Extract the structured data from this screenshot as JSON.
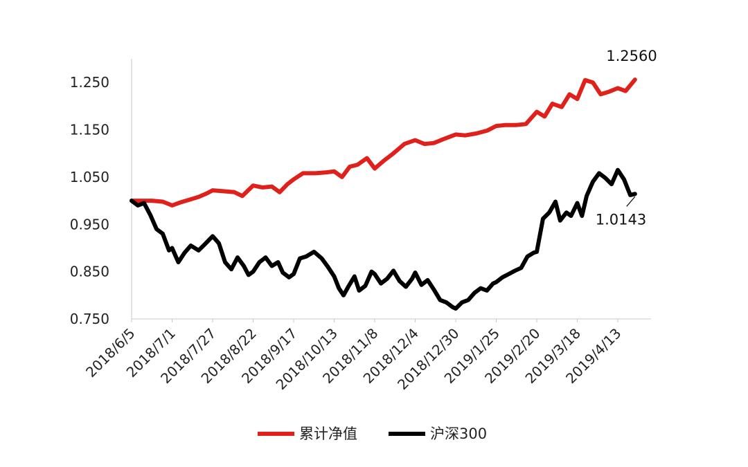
{
  "chart_data": {
    "type": "line",
    "title": "",
    "xlabel": "",
    "ylabel": "",
    "ylim": [
      0.75,
      1.3
    ],
    "yticks": [
      "1.250",
      "1.150",
      "1.050",
      "0.950",
      "0.850",
      "0.750"
    ],
    "ytick_values": [
      1.25,
      1.15,
      1.05,
      0.95,
      0.85,
      0.75
    ],
    "xtick_labels": [
      "2018/6/5",
      "2018/7/1",
      "2018/7/27",
      "2018/8/22",
      "2018/9/17",
      "2018/10/13",
      "2018/11/8",
      "2018/12/4",
      "2018/12/30",
      "2019/1/25",
      "2019/2/20",
      "2019/3/18",
      "2019/4/13"
    ],
    "grid": false,
    "legend_position": "bottom",
    "annotations": [
      {
        "text": "1.2560",
        "series": "累计净值"
      },
      {
        "text": "1.0143",
        "series": "沪深300"
      }
    ],
    "series": [
      {
        "name": "累计净值",
        "color": "#e0201b",
        "points": [
          [
            "2018/6/5",
            1.0
          ],
          [
            "2018/6/10",
            1.0
          ],
          [
            "2018/6/18",
            1.0
          ],
          [
            "2018/6/25",
            0.998
          ],
          [
            "2018/7/1",
            0.99
          ],
          [
            "2018/7/6",
            0.996
          ],
          [
            "2018/7/12",
            1.002
          ],
          [
            "2018/7/18",
            1.008
          ],
          [
            "2018/7/23",
            1.015
          ],
          [
            "2018/7/27",
            1.022
          ],
          [
            "2018/8/3",
            1.02
          ],
          [
            "2018/8/10",
            1.018
          ],
          [
            "2018/8/15",
            1.01
          ],
          [
            "2018/8/22",
            1.032
          ],
          [
            "2018/8/28",
            1.028
          ],
          [
            "2018/9/3",
            1.03
          ],
          [
            "2018/9/8",
            1.018
          ],
          [
            "2018/9/13",
            1.035
          ],
          [
            "2018/9/17",
            1.045
          ],
          [
            "2018/9/23",
            1.058
          ],
          [
            "2018/10/1",
            1.058
          ],
          [
            "2018/10/8",
            1.06
          ],
          [
            "2018/10/13",
            1.062
          ],
          [
            "2018/10/18",
            1.05
          ],
          [
            "2018/10/23",
            1.072
          ],
          [
            "2018/10/28",
            1.076
          ],
          [
            "2018/11/3",
            1.09
          ],
          [
            "2018/11/8",
            1.068
          ],
          [
            "2018/11/14",
            1.085
          ],
          [
            "2018/11/20",
            1.1
          ],
          [
            "2018/11/27",
            1.12
          ],
          [
            "2018/12/4",
            1.128
          ],
          [
            "2018/12/10",
            1.12
          ],
          [
            "2018/12/16",
            1.122
          ],
          [
            "2018/12/22",
            1.13
          ],
          [
            "2018/12/30",
            1.14
          ],
          [
            "2019/1/5",
            1.138
          ],
          [
            "2019/1/12",
            1.142
          ],
          [
            "2019/1/19",
            1.148
          ],
          [
            "2019/1/25",
            1.158
          ],
          [
            "2019/1/31",
            1.16
          ],
          [
            "2019/2/7",
            1.16
          ],
          [
            "2019/2/13",
            1.162
          ],
          [
            "2019/2/20",
            1.188
          ],
          [
            "2019/2/25",
            1.178
          ],
          [
            "2019/3/2",
            1.205
          ],
          [
            "2019/3/8",
            1.198
          ],
          [
            "2019/3/13",
            1.225
          ],
          [
            "2019/3/18",
            1.215
          ],
          [
            "2019/3/23",
            1.255
          ],
          [
            "2019/3/28",
            1.25
          ],
          [
            "2019/4/2",
            1.225
          ],
          [
            "2019/4/7",
            1.23
          ],
          [
            "2019/4/13",
            1.238
          ],
          [
            "2019/4/18",
            1.232
          ],
          [
            "2019/4/24",
            1.256
          ]
        ]
      },
      {
        "name": "沪深300",
        "color": "#000000",
        "points": [
          [
            "2018/6/5",
            1.0
          ],
          [
            "2018/6/9",
            0.99
          ],
          [
            "2018/6/13",
            0.995
          ],
          [
            "2018/6/17",
            0.97
          ],
          [
            "2018/6/21",
            0.94
          ],
          [
            "2018/6/25",
            0.93
          ],
          [
            "2018/6/29",
            0.895
          ],
          [
            "2018/7/1",
            0.9
          ],
          [
            "2018/7/5",
            0.87
          ],
          [
            "2018/7/9",
            0.89
          ],
          [
            "2018/7/13",
            0.905
          ],
          [
            "2018/7/18",
            0.895
          ],
          [
            "2018/7/22",
            0.908
          ],
          [
            "2018/7/27",
            0.925
          ],
          [
            "2018/7/31",
            0.91
          ],
          [
            "2018/8/4",
            0.87
          ],
          [
            "2018/8/8",
            0.855
          ],
          [
            "2018/8/12",
            0.88
          ],
          [
            "2018/8/16",
            0.862
          ],
          [
            "2018/8/19",
            0.843
          ],
          [
            "2018/8/22",
            0.85
          ],
          [
            "2018/8/26",
            0.87
          ],
          [
            "2018/8/30",
            0.88
          ],
          [
            "2018/9/3",
            0.862
          ],
          [
            "2018/9/7",
            0.87
          ],
          [
            "2018/9/10",
            0.848
          ],
          [
            "2018/9/14",
            0.838
          ],
          [
            "2018/9/17",
            0.845
          ],
          [
            "2018/9/21",
            0.878
          ],
          [
            "2018/9/25",
            0.882
          ],
          [
            "2018/9/30",
            0.892
          ],
          [
            "2018/10/5",
            0.878
          ],
          [
            "2018/10/9",
            0.86
          ],
          [
            "2018/10/13",
            0.84
          ],
          [
            "2018/10/16",
            0.815
          ],
          [
            "2018/10/19",
            0.8
          ],
          [
            "2018/10/22",
            0.818
          ],
          [
            "2018/10/26",
            0.84
          ],
          [
            "2018/10/29",
            0.81
          ],
          [
            "2018/11/2",
            0.82
          ],
          [
            "2018/11/6",
            0.85
          ],
          [
            "2018/11/8",
            0.845
          ],
          [
            "2018/11/12",
            0.825
          ],
          [
            "2018/11/16",
            0.835
          ],
          [
            "2018/11/20",
            0.852
          ],
          [
            "2018/11/24",
            0.83
          ],
          [
            "2018/11/28",
            0.818
          ],
          [
            "2018/12/2",
            0.835
          ],
          [
            "2018/12/4",
            0.848
          ],
          [
            "2018/12/8",
            0.822
          ],
          [
            "2018/12/12",
            0.832
          ],
          [
            "2018/12/16",
            0.812
          ],
          [
            "2018/12/20",
            0.79
          ],
          [
            "2018/12/24",
            0.785
          ],
          [
            "2018/12/28",
            0.775
          ],
          [
            "2018/12/30",
            0.772
          ],
          [
            "2019/1/3",
            0.785
          ],
          [
            "2019/1/7",
            0.79
          ],
          [
            "2019/1/11",
            0.805
          ],
          [
            "2019/1/15",
            0.815
          ],
          [
            "2019/1/19",
            0.81
          ],
          [
            "2019/1/23",
            0.825
          ],
          [
            "2019/1/25",
            0.828
          ],
          [
            "2019/1/29",
            0.838
          ],
          [
            "2019/2/2",
            0.845
          ],
          [
            "2019/2/6",
            0.852
          ],
          [
            "2019/2/10",
            0.858
          ],
          [
            "2019/2/14",
            0.882
          ],
          [
            "2019/2/18",
            0.89
          ],
          [
            "2019/2/20",
            0.892
          ],
          [
            "2019/2/24",
            0.962
          ],
          [
            "2019/2/28",
            0.975
          ],
          [
            "2019/3/4",
            0.998
          ],
          [
            "2019/3/7",
            0.958
          ],
          [
            "2019/3/11",
            0.975
          ],
          [
            "2019/3/14",
            0.968
          ],
          [
            "2019/3/18",
            0.995
          ],
          [
            "2019/3/21",
            0.968
          ],
          [
            "2019/3/24",
            1.01
          ],
          [
            "2019/3/28",
            1.04
          ],
          [
            "2019/4/1",
            1.058
          ],
          [
            "2019/4/5",
            1.048
          ],
          [
            "2019/4/9",
            1.035
          ],
          [
            "2019/4/13",
            1.065
          ],
          [
            "2019/4/17",
            1.045
          ],
          [
            "2019/4/21",
            1.012
          ],
          [
            "2019/4/24",
            1.0143
          ]
        ]
      }
    ]
  }
}
